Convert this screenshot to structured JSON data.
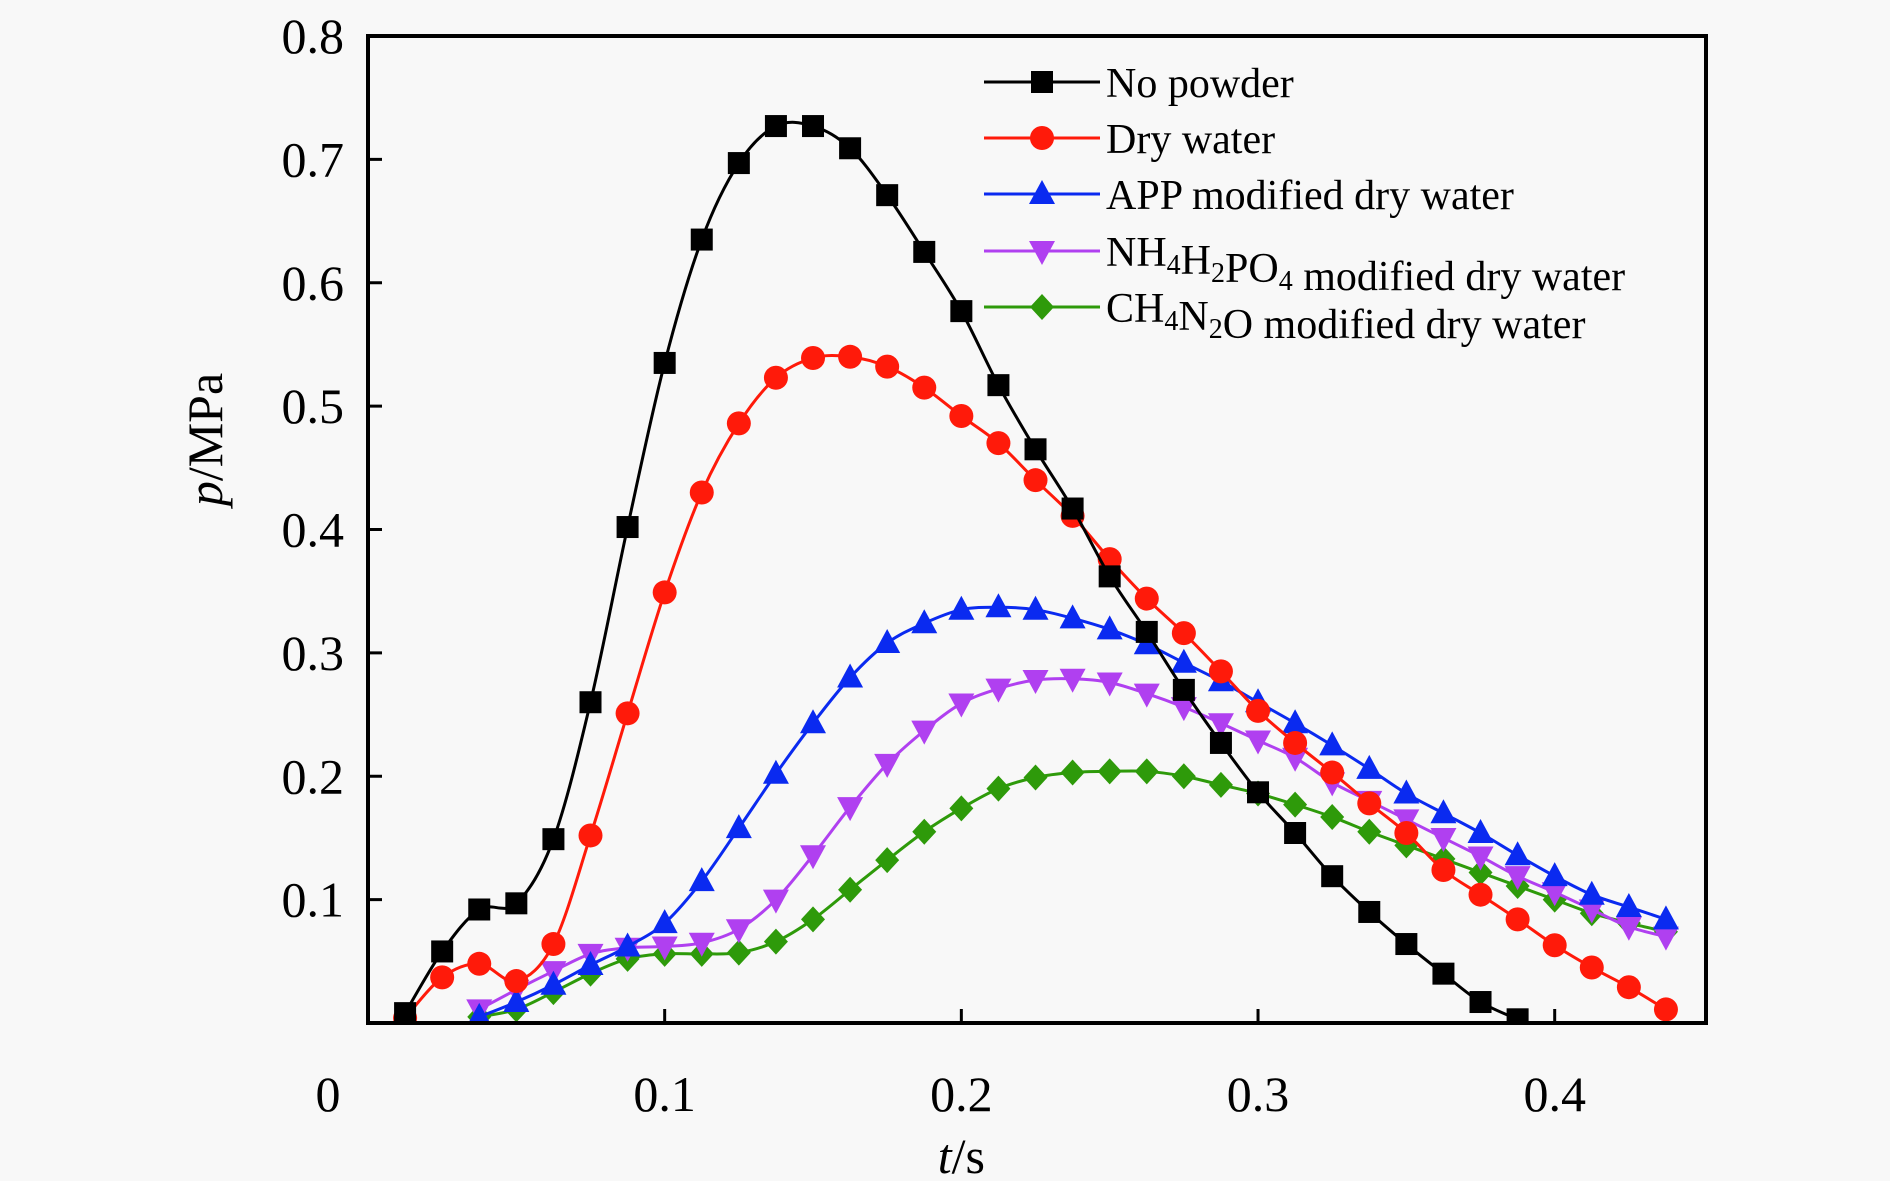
{
  "chart_data": {
    "type": "line",
    "title": "",
    "xlabel": "t/s",
    "xlabel_italic": "t",
    "xlabel_unit": "/s",
    "ylabel": "p/MPa",
    "ylabel_italic": "p",
    "ylabel_unit": "/MPa",
    "xlim": [
      0,
      0.451
    ],
    "ylim": [
      0,
      0.8
    ],
    "xticks": [
      0,
      0.1,
      0.2,
      0.3,
      0.4
    ],
    "xtick_labels": [
      "0",
      "0.1",
      "0.2",
      "0.3",
      "0.4"
    ],
    "yticks": [
      0.1,
      0.2,
      0.3,
      0.4,
      0.5,
      0.6,
      0.7,
      0.8
    ],
    "ytick_labels": [
      "0.1",
      "0.2",
      "0.3",
      "0.4",
      "0.5",
      "0.6",
      "0.7",
      "0.8"
    ],
    "grid": false,
    "legend_position": "top-right",
    "series": [
      {
        "name": "No powder",
        "legend_parts": [
          {
            "t": "No powder"
          }
        ],
        "color": "#000000",
        "marker": "square",
        "x": [
          0.0125,
          0.025,
          0.0375,
          0.05,
          0.0625,
          0.075,
          0.0875,
          0.1,
          0.1125,
          0.125,
          0.1375,
          0.15,
          0.1625,
          0.175,
          0.1875,
          0.2,
          0.2125,
          0.225,
          0.2375,
          0.25,
          0.2625,
          0.275,
          0.2875,
          0.3,
          0.3125,
          0.325,
          0.3375,
          0.35,
          0.3625,
          0.375,
          0.3875
        ],
        "y": [
          0.008,
          0.058,
          0.092,
          0.097,
          0.149,
          0.26,
          0.402,
          0.535,
          0.635,
          0.697,
          0.727,
          0.727,
          0.709,
          0.671,
          0.625,
          0.577,
          0.517,
          0.465,
          0.417,
          0.362,
          0.317,
          0.27,
          0.227,
          0.187,
          0.154,
          0.119,
          0.09,
          0.064,
          0.04,
          0.017,
          0.003
        ]
      },
      {
        "name": "Dry water",
        "legend_parts": [
          {
            "t": "Dry water"
          }
        ],
        "color": "#ff1a0a",
        "marker": "circle",
        "x": [
          0.0125,
          0.025,
          0.0375,
          0.05,
          0.0625,
          0.075,
          0.0875,
          0.1,
          0.1125,
          0.125,
          0.1375,
          0.15,
          0.1625,
          0.175,
          0.1875,
          0.2,
          0.2125,
          0.225,
          0.2375,
          0.25,
          0.2625,
          0.275,
          0.2875,
          0.3,
          0.3125,
          0.325,
          0.3375,
          0.35,
          0.3625,
          0.375,
          0.3875,
          0.4,
          0.4125,
          0.425,
          0.4375
        ],
        "y": [
          0.004,
          0.037,
          0.048,
          0.034,
          0.064,
          0.152,
          0.251,
          0.349,
          0.43,
          0.486,
          0.523,
          0.539,
          0.54,
          0.532,
          0.515,
          0.492,
          0.47,
          0.44,
          0.411,
          0.376,
          0.344,
          0.316,
          0.285,
          0.253,
          0.227,
          0.203,
          0.178,
          0.154,
          0.124,
          0.104,
          0.084,
          0.063,
          0.045,
          0.029,
          0.011
        ]
      },
      {
        "name": "APP modified dry water",
        "legend_parts": [
          {
            "t": "APP modified dry water"
          }
        ],
        "color": "#0a2af0",
        "marker": "triangle-up",
        "x": [
          0.0375,
          0.05,
          0.0625,
          0.075,
          0.0875,
          0.1,
          0.1125,
          0.125,
          0.1375,
          0.15,
          0.1625,
          0.175,
          0.1875,
          0.2,
          0.2125,
          0.225,
          0.2375,
          0.25,
          0.2625,
          0.275,
          0.2875,
          0.3,
          0.3125,
          0.325,
          0.3375,
          0.35,
          0.3625,
          0.375,
          0.3875,
          0.4,
          0.4125,
          0.425,
          0.4375
        ],
        "y": [
          0.005,
          0.017,
          0.031,
          0.047,
          0.062,
          0.081,
          0.115,
          0.158,
          0.202,
          0.243,
          0.28,
          0.308,
          0.324,
          0.335,
          0.337,
          0.335,
          0.328,
          0.319,
          0.307,
          0.292,
          0.277,
          0.26,
          0.243,
          0.225,
          0.206,
          0.186,
          0.17,
          0.154,
          0.136,
          0.119,
          0.104,
          0.094,
          0.084
        ]
      },
      {
        "name": "NH4H2PO4 modified dry water",
        "legend_parts": [
          {
            "t": "NH"
          },
          {
            "t": "4",
            "sub": true
          },
          {
            "t": "H"
          },
          {
            "t": "2",
            "sub": true
          },
          {
            "t": "PO"
          },
          {
            "t": "4",
            "sub": true
          },
          {
            "t": " modified dry water"
          }
        ],
        "color": "#b040f0",
        "marker": "triangle-down",
        "x": [
          0.0375,
          0.05,
          0.0625,
          0.075,
          0.0875,
          0.1,
          0.1125,
          0.125,
          0.1375,
          0.15,
          0.1625,
          0.175,
          0.1875,
          0.2,
          0.2125,
          0.225,
          0.2375,
          0.25,
          0.2625,
          0.275,
          0.2875,
          0.3,
          0.3125,
          0.325,
          0.3375,
          0.35,
          0.3625,
          0.375,
          0.3875,
          0.4,
          0.4125,
          0.425,
          0.4375
        ],
        "y": [
          0.011,
          0.027,
          0.042,
          0.056,
          0.061,
          0.062,
          0.065,
          0.076,
          0.1,
          0.136,
          0.175,
          0.21,
          0.237,
          0.259,
          0.271,
          0.278,
          0.279,
          0.276,
          0.267,
          0.256,
          0.243,
          0.229,
          0.215,
          0.195,
          0.18,
          0.165,
          0.15,
          0.135,
          0.119,
          0.106,
          0.092,
          0.078,
          0.07
        ]
      },
      {
        "name": "CH4N2O modified dry water",
        "legend_parts": [
          {
            "t": "CH"
          },
          {
            "t": "4",
            "sub": true
          },
          {
            "t": "N"
          },
          {
            "t": "2",
            "sub": true
          },
          {
            "t": "O modified dry water"
          }
        ],
        "color": "#2e9a0a",
        "marker": "diamond",
        "x": [
          0.0375,
          0.05,
          0.0625,
          0.075,
          0.0875,
          0.1,
          0.1125,
          0.125,
          0.1375,
          0.15,
          0.1625,
          0.175,
          0.1875,
          0.2,
          0.2125,
          0.225,
          0.2375,
          0.25,
          0.2625,
          0.275,
          0.2875,
          0.3,
          0.3125,
          0.325,
          0.3375,
          0.35,
          0.3625,
          0.375,
          0.3875,
          0.4,
          0.4125,
          0.425,
          0.4375
        ],
        "y": [
          0.005,
          0.011,
          0.025,
          0.04,
          0.052,
          0.056,
          0.056,
          0.057,
          0.066,
          0.084,
          0.108,
          0.132,
          0.155,
          0.174,
          0.19,
          0.199,
          0.203,
          0.204,
          0.204,
          0.2,
          0.193,
          0.186,
          0.177,
          0.167,
          0.155,
          0.144,
          0.133,
          0.122,
          0.111,
          0.1,
          0.089,
          0.081,
          0.074
        ]
      }
    ]
  }
}
